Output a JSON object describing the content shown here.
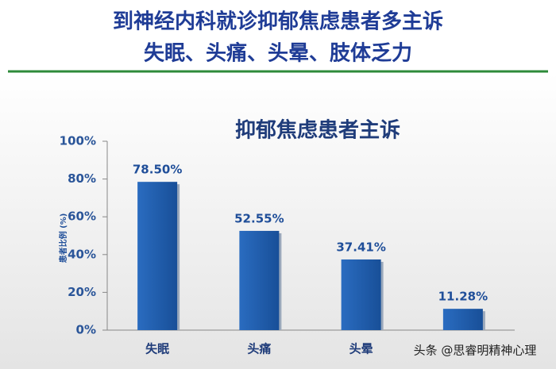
{
  "header": {
    "title_line1": "到神经内科就诊抑郁焦虑患者多主诉",
    "title_line2": "失眠、头痛、头晕、肢体乏力"
  },
  "chart_data": {
    "type": "bar",
    "title": "抑郁焦虑患者主诉",
    "y_label": "患者比例 (%)",
    "categories": [
      "失眠",
      "头痛",
      "头晕",
      null
    ],
    "values": [
      78.5,
      52.55,
      37.41,
      11.28
    ],
    "value_labels": [
      "78.50%",
      "52.55%",
      "37.41%",
      "11.28%"
    ],
    "color": "#1f5dab",
    "ylim": [
      0,
      100
    ],
    "yticks": [
      {
        "value": 0,
        "label": "0%"
      },
      {
        "value": 20,
        "label": "20%"
      },
      {
        "value": 40,
        "label": "40%"
      },
      {
        "value": 60,
        "label": "60%"
      },
      {
        "value": 80,
        "label": "80%"
      },
      {
        "value": 100,
        "label": "100%"
      }
    ]
  },
  "watermark": "头条 @思睿明精神心理"
}
